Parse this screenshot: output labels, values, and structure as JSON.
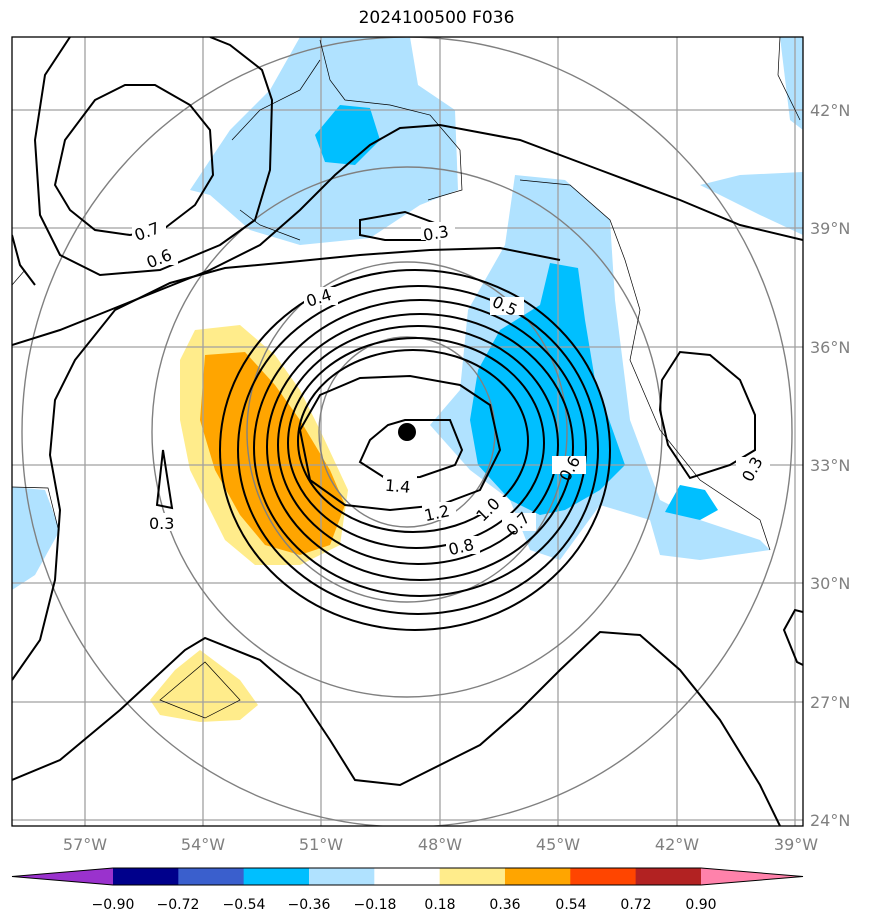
{
  "title": "2024100500 F036",
  "lon_ticks": [
    "57°W",
    "54°W",
    "51°W",
    "48°W",
    "45°W",
    "42°W",
    "39°W"
  ],
  "lat_ticks": [
    "42°N",
    "39°N",
    "36°N",
    "33°N",
    "30°N",
    "27°N",
    "24°N"
  ],
  "contour_labels": [
    "0.7",
    "0.6",
    "0.3",
    "0.4",
    "0.5",
    "1.4",
    "1.2",
    "1.0",
    "0.8",
    "0.7",
    "0.6",
    "0.3",
    "0.3"
  ],
  "colorbar": {
    "labels": [
      "−0.90",
      "−0.72",
      "−0.54",
      "−0.36",
      "−0.18",
      "0.18",
      "0.36",
      "0.54",
      "0.72",
      "0.90"
    ],
    "colors": [
      "#9a32cd",
      "#00008b",
      "#3a5fcd",
      "#00bfff",
      "#b0e2ff",
      "#ffffff",
      "#ffec8b",
      "#ffa500",
      "#ff4500",
      "#b22222",
      "#ff82ab"
    ]
  },
  "storm_center": {
    "lon": "48.9°W",
    "lat": "33.8°N"
  }
}
